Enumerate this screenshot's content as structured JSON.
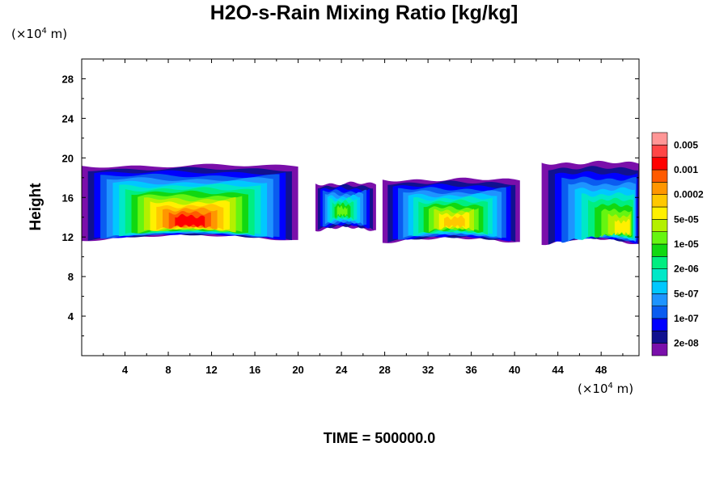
{
  "chart_data": {
    "type": "heatmap",
    "title": "H2O-s-Rain Mixing Ratio [kg/kg]",
    "xlabel": "",
    "ylabel": "Height",
    "x_unit": {
      "prefix": "(×10",
      "exp": "4",
      "suffix": " m)"
    },
    "y_unit": {
      "prefix": "(×10",
      "exp": "4",
      "suffix": " m)"
    },
    "xlim": [
      0,
      51.5
    ],
    "ylim": [
      0,
      30
    ],
    "xticks": [
      4,
      8,
      12,
      16,
      20,
      24,
      28,
      32,
      36,
      40,
      44,
      48
    ],
    "xtick_labels": [
      "4",
      "8",
      "12",
      "16",
      "20",
      "24",
      "28",
      "32",
      "36",
      "40",
      "44",
      "48"
    ],
    "yticks": [
      4,
      8,
      12,
      16,
      20,
      24,
      28
    ],
    "ytick_labels": [
      "4",
      "8",
      "12",
      "16",
      "20",
      "24",
      "28"
    ],
    "colorbar": {
      "colors": [
        "#7a0faa",
        "#11118f",
        "#0000ff",
        "#0a5cf0",
        "#1e94ff",
        "#00c8ff",
        "#00e8c8",
        "#00ee80",
        "#11d811",
        "#66f511",
        "#b4f000",
        "#fff000",
        "#ffc800",
        "#ff9600",
        "#ff5a00",
        "#ff0000",
        "#ff4646",
        "#ff9696"
      ],
      "labels": [
        "2e-08",
        "1e-07",
        "5e-07",
        "2e-06",
        "1e-05",
        "5e-05",
        "0.0002",
        "0.001",
        "0.005"
      ],
      "label_steps": [
        1,
        3,
        5,
        7,
        9,
        11,
        13,
        15,
        17
      ]
    },
    "regions": [
      {
        "name": "cloud-band-west",
        "x0": 0,
        "x1": 20,
        "top": 19.2,
        "bottom": 11.6,
        "peak_level": 15,
        "peak_x": 10,
        "peak_y": 13.3
      },
      {
        "name": "cloud-cell-24",
        "x0": 21.6,
        "x1": 27.2,
        "top": 17.4,
        "bottom": 12.6,
        "peak_level": 9,
        "peak_x": 24,
        "peak_y": 14.5
      },
      {
        "name": "cloud-band-central",
        "x0": 27.8,
        "x1": 40.5,
        "top": 17.8,
        "bottom": 11.4,
        "peak_level": 12,
        "peak_x": 34.5,
        "peak_y": 13.3
      },
      {
        "name": "cloud-band-east",
        "x0": 42.5,
        "x1": 51.5,
        "top": 19.5,
        "bottom": 11.2,
        "peak_level": 11,
        "peak_x": 50.5,
        "peak_y": 12.5
      }
    ]
  },
  "footer": {
    "time_label": "TIME = 500000.0"
  }
}
